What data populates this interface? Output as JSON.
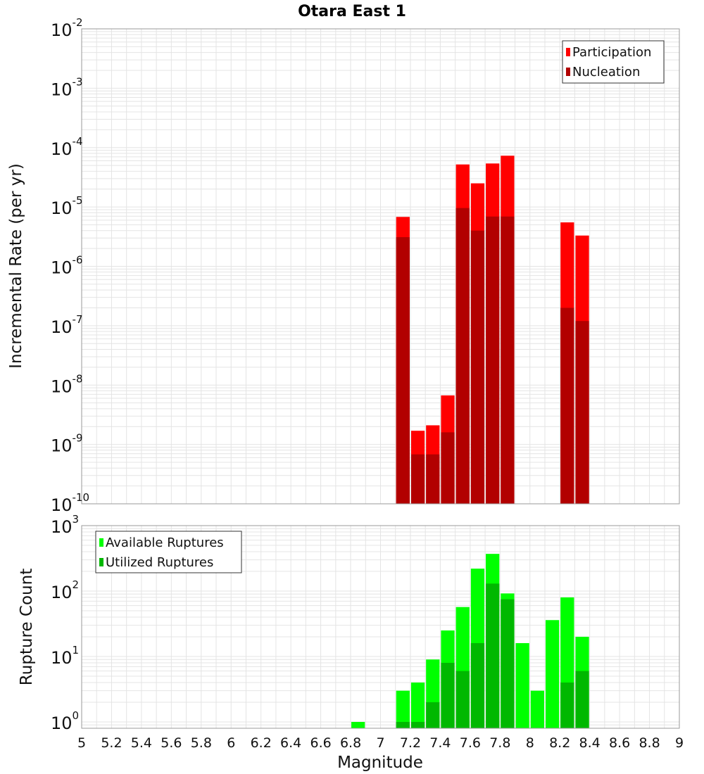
{
  "colors": {
    "participation": "#ff0000",
    "nucleation": "#b20000",
    "available": "#00ff00",
    "utilized": "#00b800",
    "grid": "#e4e4e4",
    "frame": "#9a9a9a"
  },
  "chart_data": {
    "type": "bar",
    "title": "Otara East 1",
    "xlabel": "Magnitude",
    "xlim": [
      5,
      9
    ],
    "xticks": [
      "5",
      "5.2",
      "5.4",
      "5.6",
      "5.8",
      "6",
      "6.2",
      "6.4",
      "6.6",
      "6.8",
      "7",
      "7.2",
      "7.4",
      "7.6",
      "7.8",
      "8",
      "8.2",
      "8.4",
      "8.6",
      "8.8",
      "9"
    ],
    "grid": true,
    "panels": [
      {
        "ylabel": "Incremental Rate (per yr)",
        "yscale": "log",
        "ylim": [
          1e-10,
          0.01
        ],
        "yticks": [
          {
            "base": "10",
            "exp": "-10"
          },
          {
            "base": "10",
            "exp": "-9"
          },
          {
            "base": "10",
            "exp": "-8"
          },
          {
            "base": "10",
            "exp": "-7"
          },
          {
            "base": "10",
            "exp": "-6"
          },
          {
            "base": "10",
            "exp": "-5"
          },
          {
            "base": "10",
            "exp": "-4"
          },
          {
            "base": "10",
            "exp": "-3"
          },
          {
            "base": "10",
            "exp": "-2"
          }
        ],
        "legend_position": "top-right",
        "series": [
          {
            "name": "Participation",
            "points": [
              {
                "x": 7.15,
                "y": 6.8e-06
              },
              {
                "x": 7.25,
                "y": 1.7e-09
              },
              {
                "x": 7.35,
                "y": 2.1e-09
              },
              {
                "x": 7.45,
                "y": 6.7e-09
              },
              {
                "x": 7.55,
                "y": 5.2e-05
              },
              {
                "x": 7.65,
                "y": 2.5e-05
              },
              {
                "x": 7.75,
                "y": 5.4e-05
              },
              {
                "x": 7.85,
                "y": 7.3e-05
              },
              {
                "x": 8.25,
                "y": 5.5e-06
              },
              {
                "x": 8.35,
                "y": 3.3e-06
              }
            ]
          },
          {
            "name": "Nucleation",
            "points": [
              {
                "x": 7.15,
                "y": 3.1e-06
              },
              {
                "x": 7.25,
                "y": 6.8e-10
              },
              {
                "x": 7.35,
                "y": 6.8e-10
              },
              {
                "x": 7.45,
                "y": 1.6e-09
              },
              {
                "x": 7.55,
                "y": 9.6e-06
              },
              {
                "x": 7.65,
                "y": 4e-06
              },
              {
                "x": 7.75,
                "y": 6.9e-06
              },
              {
                "x": 7.85,
                "y": 6.9e-06
              },
              {
                "x": 8.25,
                "y": 2e-07
              },
              {
                "x": 8.35,
                "y": 1.2e-07
              }
            ]
          }
        ]
      },
      {
        "ylabel": "Rupture Count",
        "yscale": "log",
        "ylim": [
          0.8,
          1000
        ],
        "yticks": [
          {
            "base": "10",
            "exp": "0"
          },
          {
            "base": "10",
            "exp": "1"
          },
          {
            "base": "10",
            "exp": "2"
          },
          {
            "base": "10",
            "exp": "3"
          }
        ],
        "legend_position": "top-left",
        "series": [
          {
            "name": "Available Ruptures",
            "points": [
              {
                "x": 6.85,
                "y": 1
              },
              {
                "x": 7.15,
                "y": 3
              },
              {
                "x": 7.25,
                "y": 4
              },
              {
                "x": 7.35,
                "y": 9
              },
              {
                "x": 7.45,
                "y": 25
              },
              {
                "x": 7.55,
                "y": 57
              },
              {
                "x": 7.65,
                "y": 220
              },
              {
                "x": 7.75,
                "y": 370
              },
              {
                "x": 7.85,
                "y": 92
              },
              {
                "x": 7.95,
                "y": 16
              },
              {
                "x": 8.05,
                "y": 3
              },
              {
                "x": 8.15,
                "y": 36
              },
              {
                "x": 8.25,
                "y": 80
              },
              {
                "x": 8.35,
                "y": 20
              }
            ]
          },
          {
            "name": "Utilized Ruptures",
            "points": [
              {
                "x": 7.15,
                "y": 1
              },
              {
                "x": 7.25,
                "y": 1
              },
              {
                "x": 7.35,
                "y": 2
              },
              {
                "x": 7.45,
                "y": 8
              },
              {
                "x": 7.55,
                "y": 6
              },
              {
                "x": 7.65,
                "y": 16
              },
              {
                "x": 7.75,
                "y": 130
              },
              {
                "x": 7.85,
                "y": 75
              },
              {
                "x": 8.25,
                "y": 4
              },
              {
                "x": 8.35,
                "y": 6
              }
            ]
          }
        ]
      }
    ]
  }
}
